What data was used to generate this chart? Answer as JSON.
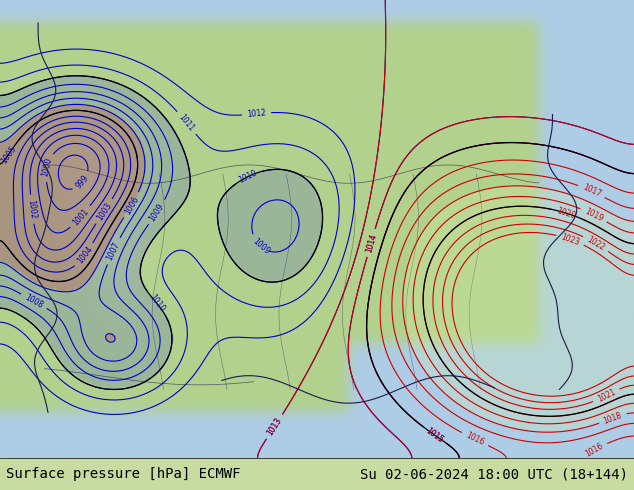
{
  "title_left": "Surface pressure [hPa] ECMWF",
  "title_right": "Su 02-06-2024 18:00 UTC (18+144)",
  "bg_color": "#c8dba0",
  "water_color": "#b0c8e8",
  "text_color": "#000000",
  "blue_line_color": "#0000cc",
  "red_line_color": "#cc0000",
  "black_line_color": "#000000",
  "land_green": "#a8c878",
  "land_green2": "#c8e090",
  "fig_width": 6.34,
  "fig_height": 4.9,
  "dpi": 100
}
